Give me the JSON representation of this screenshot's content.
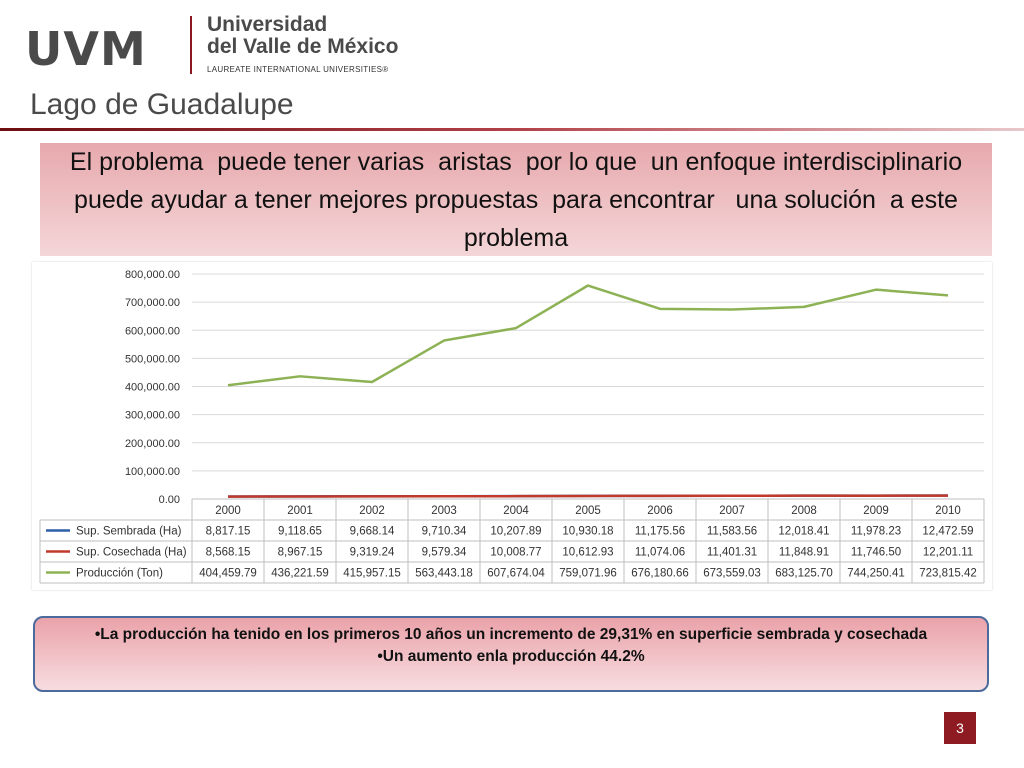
{
  "header": {
    "logo_text": "UVM",
    "university_name": [
      "Universidad",
      "del Valle de México"
    ],
    "university_sub": "LAUREATE INTERNATIONAL UNIVERSITIES®",
    "campus": "Lago de Guadalupe"
  },
  "banner": {
    "text": "El problema  puede tener varias  aristas  por lo que  un enfoque interdisciplinario puede ayudar a tener mejores propuestas  para encontrar   una solución  a este problema"
  },
  "chart_data": {
    "type": "line",
    "categories": [
      "2000",
      "2001",
      "2002",
      "2003",
      "2004",
      "2005",
      "2006",
      "2007",
      "2008",
      "2009",
      "2010"
    ],
    "ylim": [
      0,
      800000
    ],
    "yticks": [
      "0.00",
      "100,000.00",
      "200,000.00",
      "300,000.00",
      "400,000.00",
      "500,000.00",
      "600,000.00",
      "700,000.00",
      "800,000.00"
    ],
    "grid": true,
    "legend": "table-below",
    "series": [
      {
        "name": "Sup. Sembrada (Ha)",
        "color": "#2e5fa8",
        "values": [
          8817.15,
          9118.65,
          9668.14,
          9710.34,
          10207.89,
          10930.18,
          11175.56,
          11583.56,
          12018.41,
          11978.23,
          12472.59
        ],
        "labels": [
          "8,817.15",
          "9,118.65",
          "9,668.14",
          "9,710.34",
          "10,207.89",
          "10,930.18",
          "11,175.56",
          "11,583.56",
          "12,018.41",
          "11,978.23",
          "12,472.59"
        ]
      },
      {
        "name": "Sup. Cosechada (Ha)",
        "color": "#c0392b",
        "values": [
          8568.15,
          8967.15,
          9319.24,
          9579.34,
          10008.77,
          10612.93,
          11074.06,
          11401.31,
          11848.91,
          11746.5,
          12201.11
        ],
        "labels": [
          "8,568.15",
          "8,967.15",
          "9,319.24",
          "9,579.34",
          "10,008.77",
          "10,612.93",
          "11,074.06",
          "11,401.31",
          "11,848.91",
          "11,746.50",
          "12,201.11"
        ]
      },
      {
        "name": "Producción (Ton)",
        "color": "#8db255",
        "values": [
          404459.79,
          436221.59,
          415957.15,
          563443.18,
          607674.04,
          759071.96,
          676180.66,
          673559.03,
          683125.7,
          744250.41,
          723815.42
        ],
        "labels": [
          "404,459.79",
          "436,221.59",
          "415,957.15",
          "563,443.18",
          "607,674.04",
          "759,071.96",
          "676,180.66",
          "673,559.03",
          "683,125.70",
          "744,250.41",
          "723,815.42"
        ]
      }
    ]
  },
  "note": {
    "line1": "•La producción  ha tenido  en los  primeros 10 años   un incremento  de 29,31%  en superficie   sembrada y cosechada",
    "line2": "•Un aumento enla producción  44.2%"
  },
  "page_number": "3"
}
